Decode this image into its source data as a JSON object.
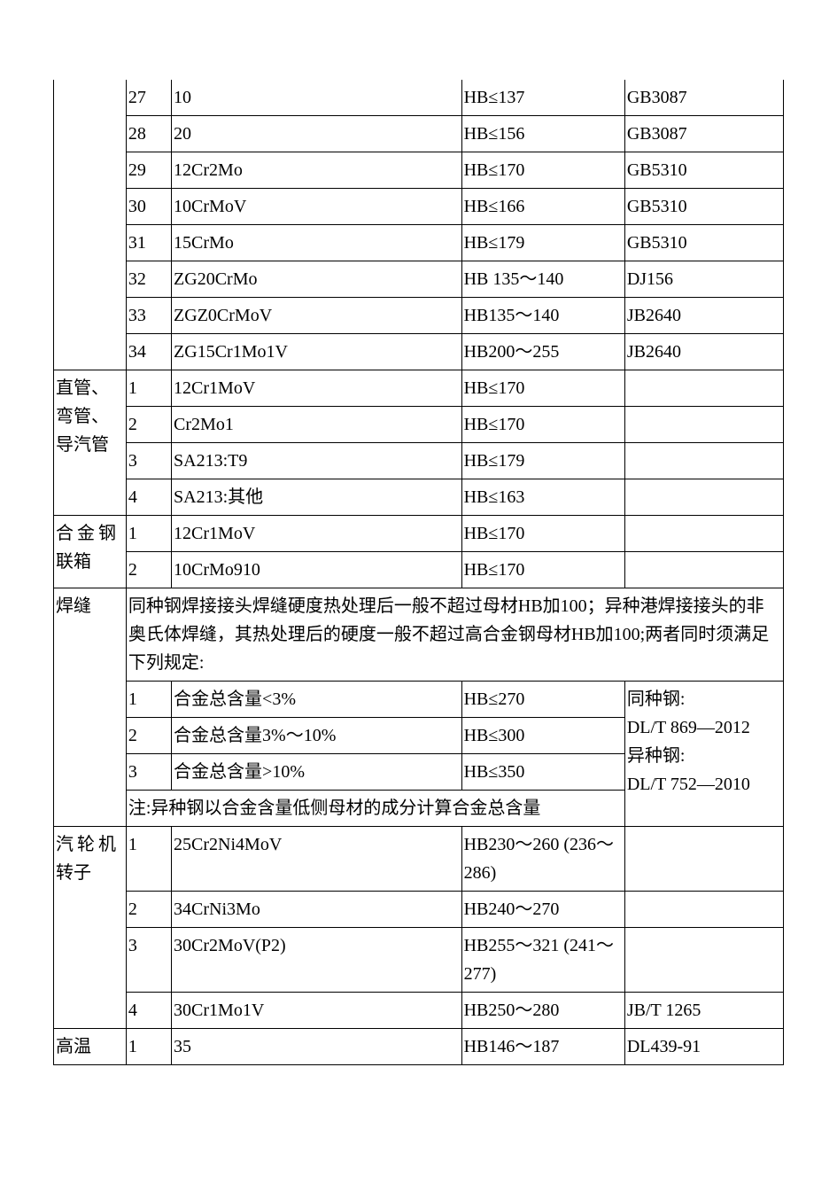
{
  "r1": {
    "c2": "27",
    "c3": "10",
    "c4": "HB≤137",
    "c5": "GB3087"
  },
  "r2": {
    "c2": "28",
    "c3": "20",
    "c4": "HB≤156",
    "c5": "GB3087"
  },
  "r3": {
    "c2": "29",
    "c3": "12Cr2Mo",
    "c4": "HB≤170",
    "c5": "GB5310"
  },
  "r4": {
    "c2": "30",
    "c3": "10CrMoV",
    "c4": "HB≤166",
    "c5": "GB5310"
  },
  "r5": {
    "c2": "31",
    "c3": "15CrMo",
    "c4": "HB≤179",
    "c5": "GB5310"
  },
  "r6": {
    "c2": "32",
    "c3": "ZG20CrMo",
    "c4": "HB 135～140",
    "c5": "DJ156"
  },
  "r7": {
    "c2": "33",
    "c3": "ZGZ0CrMoV",
    "c4": "HB135～140",
    "c5": "JB2640"
  },
  "r8": {
    "c2": "34",
    "c3": "ZG15Cr1Mo1V",
    "c4": "HB200～255",
    "c5": "JB2640"
  },
  "r9": {
    "c1": "直管、弯管、导汽管",
    "c2": "1",
    "c3": "12Cr1MoV",
    "c4": "HB≤170",
    "c5": ""
  },
  "r10": {
    "c2": "2",
    "c3": "Cr2Mo1",
    "c4": "HB≤170",
    "c5": ""
  },
  "r11": {
    "c2": "3",
    "c3": "SA213:T9",
    "c4": "HB≤179",
    "c5": ""
  },
  "r12": {
    "c2": "4",
    "c3": "SA213:其他",
    "c4": "HB≤163",
    "c5": ""
  },
  "r13": {
    "c1": "合金钢联箱",
    "c2": "1",
    "c3": "12Cr1MoV",
    "c4": "HB≤170",
    "c5": ""
  },
  "r14": {
    "c2": "2",
    "c3": "10CrMo910",
    "c4": "HB≤170",
    "c5": ""
  },
  "r15": {
    "c1": "焊缝",
    "text": "同种钢焊接接头焊缝硬度热处理后一般不超过母材HB加100；异种港焊接接头的非奥氏体焊缝，其热处理后的硬度一般不超过高合金钢母材HB加100;两者同时须满足下列规定:"
  },
  "r16": {
    "c2": "1",
    "c3": "合金总含量<3%",
    "c4": "HB≤270"
  },
  "r17": {
    "c2": "2",
    "c3": "合金总含量3%～10%",
    "c4": "HB≤300"
  },
  "r18": {
    "c2": "3",
    "c3": "合金总含量>10%",
    "c4": "HB≤350"
  },
  "r19": {
    "text": "注:异种钢以合金含量低侧母材的成分计算合金总含量"
  },
  "r16c5": "同种钢:\nDL/T 869―2012\n异种钢:\nDL/T 752―2010",
  "r20": {
    "c1": "汽轮机转子",
    "c2": "1",
    "c3": "25Cr2Ni4MoV",
    "c4": "HB230～260 (236～286)",
    "c5": ""
  },
  "r21": {
    "c2": "2",
    "c3": "34CrNi3Mo",
    "c4": "HB240～270",
    "c5": ""
  },
  "r22": {
    "c2": "3",
    "c3": "30Cr2MoV(P2)",
    "c4": "HB255～321 (241～277)",
    "c5": ""
  },
  "r23": {
    "c2": "4",
    "c3": "30Cr1Mo1V",
    "c4": "HB250～280",
    "c5": "JB/T 1265"
  },
  "r24": {
    "c1": "高温",
    "c2": "1",
    "c3": "35",
    "c4": "HB146～187",
    "c5": "DL439-91"
  },
  "sp_label_1": "汽轮机",
  "sp_label_2": "转子",
  "sp_label_3": "合金钢",
  "sp_label_4": "联箱"
}
